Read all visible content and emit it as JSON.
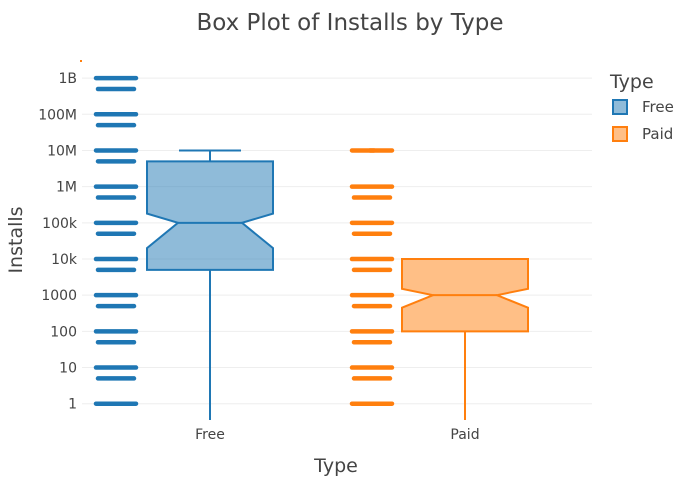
{
  "chart_data": {
    "type": "box",
    "title": "Box Plot of Installs by Type",
    "xlabel": "Type",
    "ylabel": "Installs",
    "y_scale": "log",
    "y_ticks": [
      {
        "value": 1,
        "label": "1"
      },
      {
        "value": 10,
        "label": "10"
      },
      {
        "value": 100,
        "label": "100"
      },
      {
        "value": 1000,
        "label": "1000"
      },
      {
        "value": 10000,
        "label": "10k"
      },
      {
        "value": 100000,
        "label": "100k"
      },
      {
        "value": 1000000,
        "label": "1M"
      },
      {
        "value": 10000000,
        "label": "10M"
      },
      {
        "value": 100000000,
        "label": "100M"
      },
      {
        "value": 1000000000,
        "label": "1B"
      }
    ],
    "categories": [
      "Free",
      "Paid"
    ],
    "legend": {
      "title": "Type",
      "position": "top-right"
    },
    "series": [
      {
        "name": "Free",
        "color": "#1f77b4",
        "lower_whisker": 0,
        "q1": 5000,
        "notch_low": 20000,
        "median": 100000,
        "notch_high": 180000,
        "q3": 5000000,
        "upper_whisker": 10000000,
        "points": [
          1,
          5,
          10,
          50,
          100,
          500,
          1000,
          5000,
          10000,
          50000,
          100000,
          500000,
          1000000,
          5000000,
          10000000,
          50000000,
          100000000,
          500000000,
          1000000000
        ]
      },
      {
        "name": "Paid",
        "color": "#ff7f0e",
        "lower_whisker": 0,
        "q1": 100,
        "notch_low": 450,
        "median": 1000,
        "notch_high": 1500,
        "q3": 10000,
        "upper_whisker": 10000,
        "outliers": [
          10000000
        ],
        "points": [
          1,
          5,
          10,
          50,
          100,
          500,
          1000,
          5000,
          10000,
          50000,
          100000,
          500000,
          1000000,
          10000000
        ]
      }
    ]
  }
}
